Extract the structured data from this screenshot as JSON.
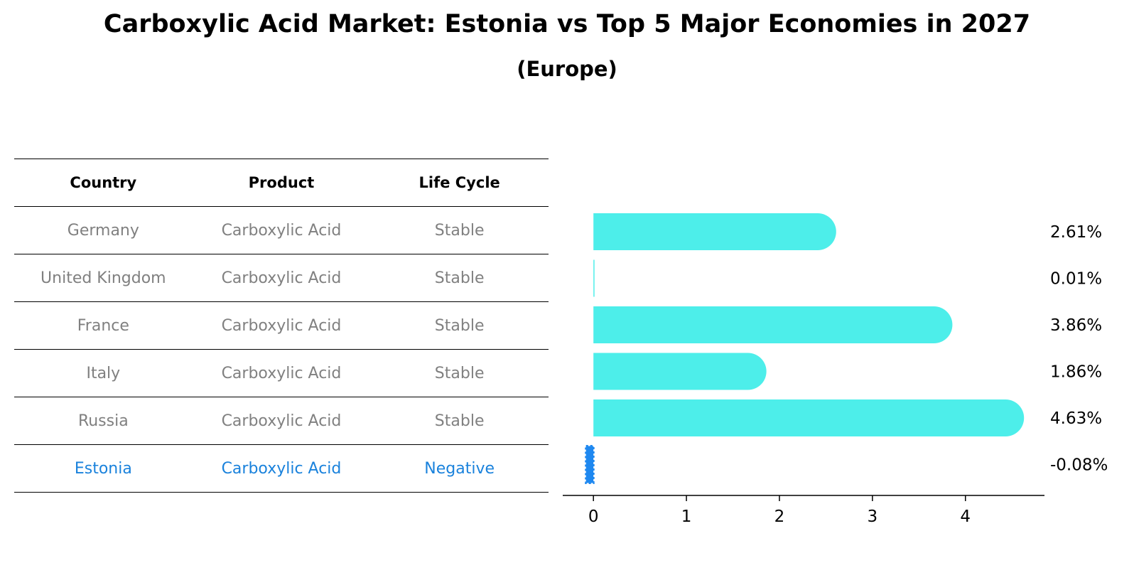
{
  "title": "Carboxylic Acid Market: Estonia vs Top 5 Major Economies in 2027",
  "subtitle": "(Europe)",
  "table": {
    "headers": [
      "Country",
      "Product",
      "Life Cycle"
    ],
    "rows": [
      [
        "Germany",
        "Carboxylic Acid",
        "Stable"
      ],
      [
        "United Kingdom",
        "Carboxylic Acid",
        "Stable"
      ],
      [
        "France",
        "Carboxylic Acid",
        "Stable"
      ],
      [
        "Italy",
        "Carboxylic Acid",
        "Stable"
      ],
      [
        "Russia",
        "Carboxylic Acid",
        "Stable"
      ],
      [
        "Estonia",
        "Carboxylic Acid",
        "Negative"
      ]
    ]
  },
  "chart_data": {
    "type": "bar",
    "orientation": "horizontal",
    "categories": [
      "Germany",
      "United Kingdom",
      "France",
      "Italy",
      "Russia",
      "Estonia"
    ],
    "values": [
      2.61,
      0.01,
      3.86,
      1.86,
      4.63,
      -0.08
    ],
    "value_labels": [
      "2.61%",
      "0.01%",
      "3.86%",
      "1.86%",
      "4.63%",
      "-0.08%"
    ],
    "xticks": [
      0,
      1,
      2,
      3,
      4
    ],
    "xlim": [
      -0.33,
      4.85
    ],
    "grid": false,
    "colors": {
      "bar": "#4deeea",
      "negative": "#1e88f0"
    }
  }
}
